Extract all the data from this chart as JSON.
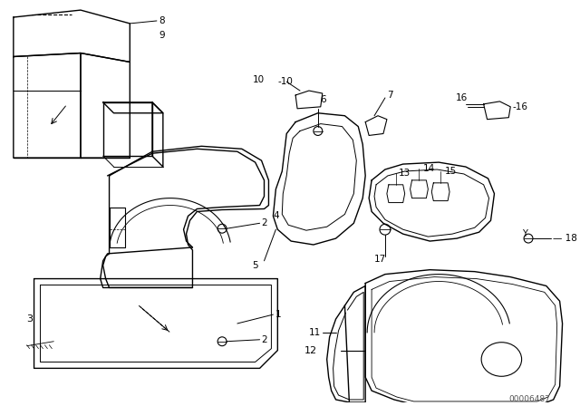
{
  "bg_color": "#ffffff",
  "line_color": "#000000",
  "part_num_color": "#555555",
  "part_number": "00006487",
  "lw_main": 1.0,
  "lw_inner": 0.7,
  "label_fontsize": 7.5,
  "annot_fontsize": 6.5
}
